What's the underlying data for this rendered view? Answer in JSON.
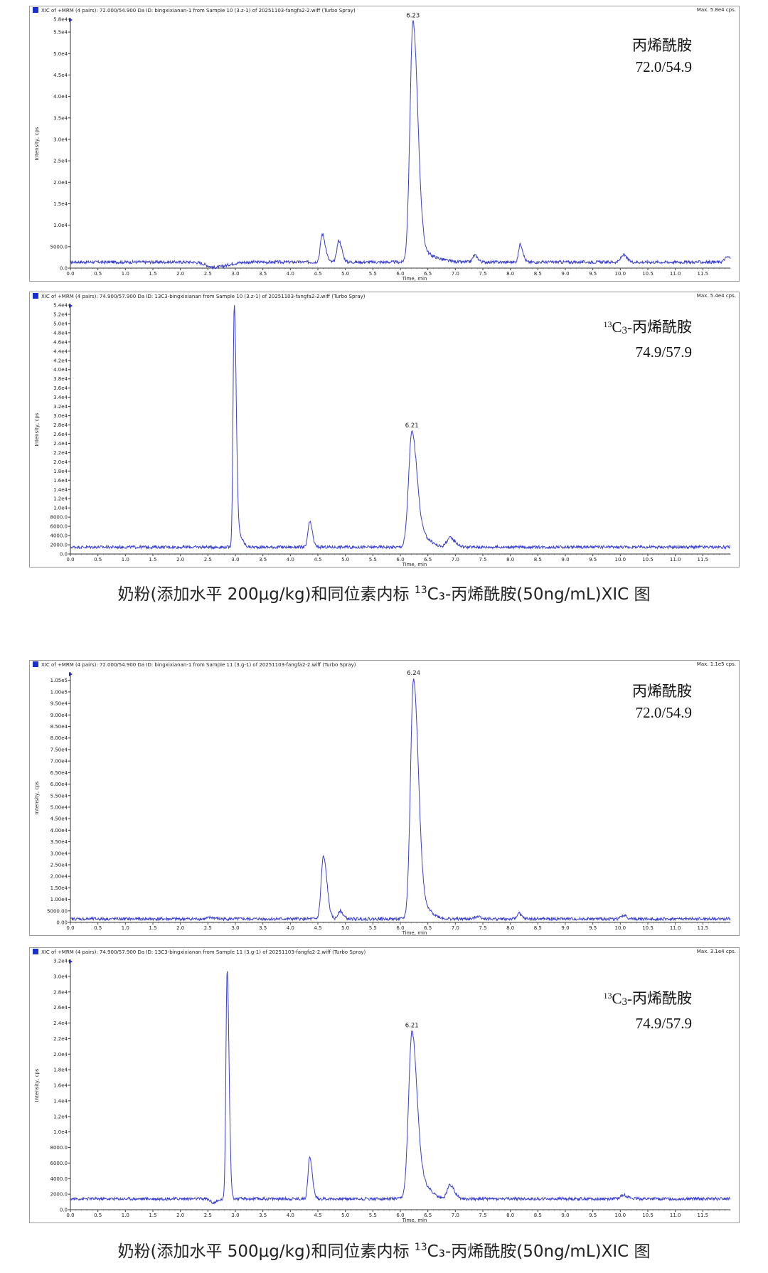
{
  "chart_data": [
    {
      "type": "line",
      "header": "XIC of +MRM (4 pairs): 72.000/54.900 Da ID: bingxixianan-1 from Sample 10 (3.z-1) of 20251103-fangfa2-2.wiff (Turbo Spray)",
      "max_label": "Max. 5.8e4 cps.",
      "xlabel": "Time, min",
      "ylabel": "Intensity, cps",
      "xlim": [
        0,
        12
      ],
      "x_ticks": [
        "0.0",
        "0.5",
        "1.0",
        "1.5",
        "2.0",
        "2.5",
        "3.0",
        "3.5",
        "4.0",
        "4.5",
        "5.0",
        "5.5",
        "6.0",
        "6.5",
        "7.0",
        "7.5",
        "8.0",
        "8.5",
        "9.0",
        "9.5",
        "10.0",
        "10.5",
        "11.0",
        "11.5"
      ],
      "ylim": [
        0,
        58000
      ],
      "y_ticks": [
        {
          "v": 0,
          "label": "0.0"
        },
        {
          "v": 5000,
          "label": "5000.0"
        },
        {
          "v": 10000,
          "label": "1.0e4"
        },
        {
          "v": 15000,
          "label": "1.5e4"
        },
        {
          "v": 20000,
          "label": "2.0e4"
        },
        {
          "v": 25000,
          "label": "2.5e4"
        },
        {
          "v": 30000,
          "label": "3.0e4"
        },
        {
          "v": 35000,
          "label": "3.5e4"
        },
        {
          "v": 40000,
          "label": "4.0e4"
        },
        {
          "v": 45000,
          "label": "4.5e4"
        },
        {
          "v": 50000,
          "label": "5.0e4"
        },
        {
          "v": 55000,
          "label": "5.5e4"
        },
        {
          "v": 58000,
          "label": "5.8e4"
        }
      ],
      "baseline": 1400,
      "peaks": [
        {
          "x": 2.62,
          "h": -1200,
          "w": 0.14
        },
        {
          "x": 4.58,
          "h": 6500,
          "w": 0.035
        },
        {
          "x": 4.88,
          "h": 5000,
          "w": 0.035
        },
        {
          "x": 6.23,
          "h": 56000,
          "w": 0.055,
          "label": "6.23"
        },
        {
          "x": 6.45,
          "h": 2000,
          "w": 0.08
        },
        {
          "x": 6.7,
          "h": 600,
          "w": 0.1
        },
        {
          "x": 7.35,
          "h": 1600,
          "w": 0.035
        },
        {
          "x": 8.18,
          "h": 4200,
          "w": 0.03
        },
        {
          "x": 10.05,
          "h": 1700,
          "w": 0.04
        },
        {
          "x": 11.95,
          "h": 1200,
          "w": 0.05
        }
      ],
      "compound": "丙烯酰胺",
      "transition": "72.0/54.9"
    },
    {
      "type": "line",
      "header": "XIC of +MRM (4 pairs): 74.900/57.900 Da ID: 13C3-bingxixianan from Sample 10 (3.z-1) of 20251103-fangfa2-2.wiff (Turbo Spray)",
      "max_label": "Max. 5.4e4 cps.",
      "xlabel": "Time, min",
      "ylabel": "Intensity, cps",
      "xlim": [
        0,
        12
      ],
      "x_ticks": [
        "0.0",
        "0.5",
        "1.0",
        "1.5",
        "2.0",
        "2.5",
        "3.0",
        "3.5",
        "4.0",
        "4.5",
        "5.0",
        "5.5",
        "6.0",
        "6.5",
        "7.0",
        "7.5",
        "8.0",
        "8.5",
        "9.0",
        "9.5",
        "10.0",
        "10.5",
        "11.0",
        "11.5"
      ],
      "ylim": [
        0,
        54000
      ],
      "y_ticks": [
        {
          "v": 0,
          "label": "0.0"
        },
        {
          "v": 2000,
          "label": "2000.0"
        },
        {
          "v": 4000,
          "label": "4000.0"
        },
        {
          "v": 6000,
          "label": "6000.0"
        },
        {
          "v": 8000,
          "label": "8000.0"
        },
        {
          "v": 10000,
          "label": "1.0e4"
        },
        {
          "v": 12000,
          "label": "1.2e4"
        },
        {
          "v": 14000,
          "label": "1.4e4"
        },
        {
          "v": 16000,
          "label": "1.6e4"
        },
        {
          "v": 18000,
          "label": "1.8e4"
        },
        {
          "v": 20000,
          "label": "2.0e4"
        },
        {
          "v": 22000,
          "label": "2.2e4"
        },
        {
          "v": 24000,
          "label": "2.4e4"
        },
        {
          "v": 26000,
          "label": "2.6e4"
        },
        {
          "v": 28000,
          "label": "2.8e4"
        },
        {
          "v": 30000,
          "label": "3.0e4"
        },
        {
          "v": 32000,
          "label": "3.2e4"
        },
        {
          "v": 34000,
          "label": "3.4e4"
        },
        {
          "v": 36000,
          "label": "3.6e4"
        },
        {
          "v": 38000,
          "label": "3.8e4"
        },
        {
          "v": 40000,
          "label": "4.0e4"
        },
        {
          "v": 42000,
          "label": "4.2e4"
        },
        {
          "v": 44000,
          "label": "4.4e4"
        },
        {
          "v": 46000,
          "label": "4.6e4"
        },
        {
          "v": 48000,
          "label": "4.8e4"
        },
        {
          "v": 50000,
          "label": "5.0e4"
        },
        {
          "v": 52000,
          "label": "5.2e4"
        },
        {
          "v": 54000,
          "label": "5.4e4"
        }
      ],
      "baseline": 1500,
      "peaks": [
        {
          "x": 2.98,
          "h": 52500,
          "w": 0.022
        },
        {
          "x": 3.07,
          "h": 2500,
          "w": 0.04
        },
        {
          "x": 4.35,
          "h": 5500,
          "w": 0.03
        },
        {
          "x": 6.21,
          "h": 25000,
          "w": 0.06,
          "label": "6.21"
        },
        {
          "x": 6.45,
          "h": 1800,
          "w": 0.08
        },
        {
          "x": 6.9,
          "h": 2000,
          "w": 0.06
        }
      ],
      "compound": "丙烯酰胺",
      "prefix_num": "13",
      "prefix_el": "C",
      "prefix_sub": "3",
      "prefix_tail": "-",
      "transition": "74.9/57.9"
    },
    {
      "type": "line",
      "header": "XIC of +MRM (4 pairs): 72.000/54.900 Da ID: bingxixianan-1 from Sample 11 (3.g-1) of 20251103-fangfa2-2.wiff (Turbo Spray)",
      "max_label": "Max. 1.1e5 cps.",
      "xlabel": "Time, min",
      "ylabel": "Intensity, cps",
      "xlim": [
        0,
        12
      ],
      "x_ticks": [
        "0.0",
        "0.5",
        "1.0",
        "1.5",
        "2.0",
        "2.5",
        "3.0",
        "3.5",
        "4.0",
        "4.5",
        "5.0",
        "5.5",
        "6.0",
        "6.5",
        "7.0",
        "7.5",
        "8.0",
        "8.5",
        "9.0",
        "9.5",
        "10.0",
        "10.5",
        "11.0",
        "11.5"
      ],
      "ylim": [
        0,
        108000
      ],
      "y_ticks": [
        {
          "v": 0,
          "label": "0.00"
        },
        {
          "v": 5000,
          "label": "5000.00"
        },
        {
          "v": 10000,
          "label": "1.00e4"
        },
        {
          "v": 15000,
          "label": "1.50e4"
        },
        {
          "v": 20000,
          "label": "2.00e4"
        },
        {
          "v": 25000,
          "label": "2.50e4"
        },
        {
          "v": 30000,
          "label": "3.00e4"
        },
        {
          "v": 35000,
          "label": "3.50e4"
        },
        {
          "v": 40000,
          "label": "4.00e4"
        },
        {
          "v": 45000,
          "label": "4.50e4"
        },
        {
          "v": 50000,
          "label": "5.00e4"
        },
        {
          "v": 55000,
          "label": "5.50e4"
        },
        {
          "v": 60000,
          "label": "6.00e4"
        },
        {
          "v": 65000,
          "label": "6.50e4"
        },
        {
          "v": 70000,
          "label": "7.00e4"
        },
        {
          "v": 75000,
          "label": "7.50e4"
        },
        {
          "v": 80000,
          "label": "8.00e4"
        },
        {
          "v": 85000,
          "label": "8.50e4"
        },
        {
          "v": 90000,
          "label": "9.00e4"
        },
        {
          "v": 95000,
          "label": "9.50e4"
        },
        {
          "v": 100000,
          "label": "1.00e5"
        },
        {
          "v": 105000,
          "label": "1.05e5"
        }
      ],
      "baseline": 1500,
      "peaks": [
        {
          "x": 2.55,
          "h": 600,
          "w": 0.05
        },
        {
          "x": 4.6,
          "h": 27000,
          "w": 0.04
        },
        {
          "x": 4.9,
          "h": 3500,
          "w": 0.035
        },
        {
          "x": 6.24,
          "h": 104000,
          "w": 0.055,
          "label": "6.24"
        },
        {
          "x": 6.45,
          "h": 4000,
          "w": 0.09
        },
        {
          "x": 7.4,
          "h": 1200,
          "w": 0.04
        },
        {
          "x": 8.15,
          "h": 2500,
          "w": 0.03
        },
        {
          "x": 10.05,
          "h": 1500,
          "w": 0.04
        }
      ],
      "compound": "丙烯酰胺",
      "transition": "72.0/54.9"
    },
    {
      "type": "line",
      "header": "XIC of +MRM (4 pairs): 74.900/57.900 Da ID: 13C3-bingxixianan from Sample 11 (3.g-1) of 20251103-fangfa2-2.wiff (Turbo Spray)",
      "max_label": "Max. 3.1e4 cps.",
      "xlabel": "Time, min",
      "ylabel": "Intensity, cps",
      "xlim": [
        0,
        12
      ],
      "x_ticks": [
        "0.0",
        "0.5",
        "1.0",
        "1.5",
        "2.0",
        "2.5",
        "3.0",
        "3.5",
        "4.0",
        "4.5",
        "5.0",
        "5.5",
        "6.0",
        "6.5",
        "7.0",
        "7.5",
        "8.0",
        "8.5",
        "9.0",
        "9.5",
        "10.0",
        "10.5",
        "11.0",
        "11.5"
      ],
      "ylim": [
        0,
        32000
      ],
      "y_ticks": [
        {
          "v": 0,
          "label": "0.0"
        },
        {
          "v": 2000,
          "label": "2000.0"
        },
        {
          "v": 4000,
          "label": "4000.0"
        },
        {
          "v": 6000,
          "label": "6000.0"
        },
        {
          "v": 8000,
          "label": "8000.0"
        },
        {
          "v": 10000,
          "label": "1.0e4"
        },
        {
          "v": 12000,
          "label": "1.2e4"
        },
        {
          "v": 14000,
          "label": "1.4e4"
        },
        {
          "v": 16000,
          "label": "1.6e4"
        },
        {
          "v": 18000,
          "label": "1.8e4"
        },
        {
          "v": 20000,
          "label": "2.0e4"
        },
        {
          "v": 22000,
          "label": "2.2e4"
        },
        {
          "v": 24000,
          "label": "2.4e4"
        },
        {
          "v": 26000,
          "label": "2.6e4"
        },
        {
          "v": 28000,
          "label": "2.8e4"
        },
        {
          "v": 30000,
          "label": "3.0e4"
        },
        {
          "v": 32000,
          "label": "3.2e4"
        }
      ],
      "baseline": 1400,
      "peaks": [
        {
          "x": 2.6,
          "h": -500,
          "w": 0.05
        },
        {
          "x": 2.85,
          "h": 29500,
          "w": 0.022
        },
        {
          "x": 4.35,
          "h": 5300,
          "w": 0.03
        },
        {
          "x": 6.21,
          "h": 21500,
          "w": 0.06,
          "label": "6.21"
        },
        {
          "x": 6.45,
          "h": 1500,
          "w": 0.08
        },
        {
          "x": 6.9,
          "h": 1800,
          "w": 0.05
        },
        {
          "x": 10.05,
          "h": 500,
          "w": 0.05
        }
      ],
      "compound": "丙烯酰胺",
      "prefix_num": "13",
      "prefix_el": "C",
      "prefix_sub": "3",
      "prefix_tail": "-",
      "transition": "74.9/57.9"
    }
  ],
  "captions": [
    {
      "pre": "奶粉(添加水平 200μg/kg)和同位素内标 ",
      "sup": "13",
      "post": "C₃-丙烯酰胺(50ng/mL)XIC 图"
    },
    {
      "pre": "奶粉(添加水平 500μg/kg)和同位素内标 ",
      "sup": "13",
      "post": "C₃-丙烯酰胺(50ng/mL)XIC 图"
    }
  ],
  "colors": {
    "trace": "#3a3fcf",
    "marker": "#1a2fd0"
  }
}
